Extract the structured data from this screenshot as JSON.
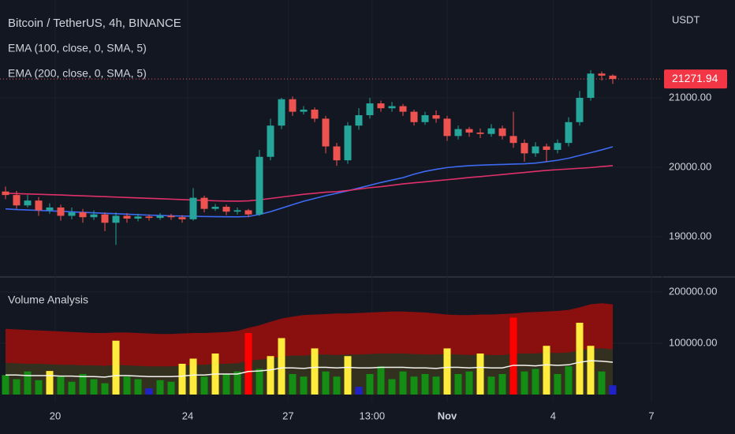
{
  "chart_data": [
    {
      "type": "candlestick",
      "title": "Bitcoin / TetherUS, 4h, BINANCE",
      "axis_unit": "USDT",
      "up_color": "#26a69a",
      "down_color": "#ef5350",
      "grid": true,
      "xlim": [
        -0.5,
        59.5
      ],
      "xticks": [
        {
          "value": 4.5,
          "label": "20"
        },
        {
          "value": 16.5,
          "label": "24"
        },
        {
          "value": 25.6,
          "label": "27"
        },
        {
          "value": 33.2,
          "label": "13:00"
        },
        {
          "value": 40,
          "label": "Nov"
        },
        {
          "value": 49.6,
          "label": "4"
        },
        {
          "value": 58.5,
          "label": "7"
        }
      ],
      "ylim": [
        18430,
        22410
      ],
      "yticks": [
        {
          "value": 19000,
          "label": "19000.00"
        },
        {
          "value": 20000,
          "label": "20000.00"
        },
        {
          "value": 21000,
          "label": "21000.00"
        }
      ],
      "last_price_label": "21271.94",
      "open": [
        19650,
        19600,
        19450,
        19520,
        19380,
        19420,
        19300,
        19350,
        19280,
        19320,
        19200,
        19300,
        19260,
        19290,
        19270,
        19300,
        19280,
        19250,
        19560,
        19400,
        19430,
        19360,
        19380,
        19320,
        20150,
        20600,
        20980,
        20800,
        20830,
        20700,
        20300,
        20100,
        20600,
        20750,
        20920,
        20850,
        20880,
        20800,
        20650,
        20750,
        20700,
        20450,
        20550,
        20500,
        20480,
        20560,
        20450,
        20350,
        20200,
        20300,
        20250,
        20350,
        20650,
        21000,
        21350,
        21320
      ],
      "high": [
        19720,
        19660,
        19600,
        19570,
        19480,
        19460,
        19420,
        19400,
        19380,
        19350,
        19350,
        19340,
        19330,
        19320,
        19340,
        19330,
        19310,
        19700,
        19590,
        19470,
        19460,
        19420,
        19400,
        20250,
        20700,
        21000,
        21020,
        20880,
        20860,
        20740,
        20350,
        20650,
        20850,
        21000,
        20960,
        20940,
        20910,
        20830,
        20800,
        20820,
        20740,
        20600,
        20580,
        20560,
        20620,
        20600,
        20800,
        20400,
        20360,
        20340,
        20400,
        20720,
        21100,
        21400,
        21380,
        21340
      ],
      "low": [
        19540,
        19400,
        19420,
        19300,
        19330,
        19230,
        19250,
        19200,
        19240,
        19080,
        18880,
        19200,
        19220,
        19230,
        19240,
        19240,
        19200,
        19230,
        19350,
        19370,
        19310,
        19320,
        19280,
        19300,
        20100,
        20550,
        20740,
        20760,
        20650,
        20200,
        20020,
        20050,
        20540,
        20700,
        20800,
        20800,
        20740,
        20600,
        20610,
        20640,
        20380,
        20400,
        20440,
        20420,
        20440,
        20400,
        20280,
        20080,
        20150,
        20080,
        20200,
        20300,
        20600,
        20960,
        21250,
        21200
      ],
      "close": [
        19600,
        19450,
        19520,
        19380,
        19420,
        19300,
        19350,
        19280,
        19320,
        19200,
        19300,
        19260,
        19290,
        19270,
        19300,
        19280,
        19250,
        19560,
        19400,
        19430,
        19360,
        19380,
        19320,
        20150,
        20600,
        20980,
        20800,
        20830,
        20700,
        20300,
        20100,
        20600,
        20750,
        20920,
        20850,
        20880,
        20800,
        20650,
        20750,
        20700,
        20450,
        20550,
        20500,
        20480,
        20560,
        20450,
        20350,
        20200,
        20300,
        20250,
        20350,
        20650,
        21000,
        21350,
        21320,
        21271.94
      ],
      "series": [
        {
          "name": "EMA (100, close, 0, SMA, 5)",
          "color": "#3d6af2",
          "values": [
            19400,
            19390,
            19385,
            19378,
            19372,
            19365,
            19358,
            19350,
            19343,
            19336,
            19330,
            19323,
            19316,
            19310,
            19305,
            19300,
            19296,
            19293,
            19290,
            19288,
            19286,
            19285,
            19290,
            19320,
            19360,
            19410,
            19460,
            19510,
            19550,
            19590,
            19625,
            19660,
            19700,
            19740,
            19780,
            19815,
            19850,
            19900,
            19940,
            19970,
            19995,
            20010,
            20023,
            20030,
            20035,
            20040,
            20045,
            20050,
            20060,
            20080,
            20100,
            20130,
            20170,
            20210,
            20250,
            20295
          ]
        },
        {
          "name": "EMA (200, close, 0, SMA, 5)",
          "color": "#e0306a",
          "values": [
            19625,
            19620,
            19615,
            19610,
            19605,
            19600,
            19594,
            19588,
            19582,
            19576,
            19570,
            19564,
            19558,
            19552,
            19546,
            19540,
            19534,
            19528,
            19522,
            19516,
            19512,
            19511,
            19515,
            19530,
            19550,
            19570,
            19590,
            19610,
            19625,
            19640,
            19648,
            19665,
            19685,
            19705,
            19720,
            19740,
            19760,
            19775,
            19790,
            19805,
            19820,
            19835,
            19852,
            19865,
            19880,
            19895,
            19910,
            19925,
            19940,
            19955,
            19965,
            19975,
            19985,
            19995,
            20010,
            20023
          ]
        }
      ]
    },
    {
      "type": "bar",
      "title": "Volume Analysis",
      "grid": true,
      "xlim": [
        -0.5,
        59.5
      ],
      "ylim": [
        0,
        227700
      ],
      "yticks": [
        {
          "value": 100000,
          "label": "100000.00"
        },
        {
          "value": 200000,
          "label": "200000.00"
        }
      ],
      "values": [
        38000,
        30000,
        45000,
        28000,
        46000,
        35000,
        25000,
        40000,
        30000,
        22000,
        105000,
        35000,
        30000,
        12000,
        28000,
        25000,
        60000,
        70000,
        35000,
        80000,
        40000,
        45000,
        120000,
        50000,
        75000,
        110000,
        40000,
        35000,
        90000,
        45000,
        35000,
        75000,
        15000,
        40000,
        55000,
        30000,
        45000,
        35000,
        40000,
        35000,
        90000,
        40000,
        45000,
        80000,
        35000,
        40000,
        150000,
        45000,
        50000,
        95000,
        40000,
        55000,
        140000,
        95000,
        45000,
        18000
      ],
      "colors": [
        "#138d13",
        "#138d13",
        "#138d13",
        "#138d13",
        "#ffeb3b",
        "#138d13",
        "#138d13",
        "#138d13",
        "#138d13",
        "#138d13",
        "#ffeb3b",
        "#138d13",
        "#138d13",
        "#1e22c8",
        "#138d13",
        "#138d13",
        "#ffeb3b",
        "#ffeb3b",
        "#138d13",
        "#ffeb3b",
        "#138d13",
        "#138d13",
        "#ff0000",
        "#138d13",
        "#ffeb3b",
        "#ffeb3b",
        "#138d13",
        "#138d13",
        "#ffeb3b",
        "#138d13",
        "#138d13",
        "#ffeb3b",
        "#1e22c8",
        "#138d13",
        "#138d13",
        "#138d13",
        "#138d13",
        "#138d13",
        "#138d13",
        "#138d13",
        "#ffeb3b",
        "#138d13",
        "#138d13",
        "#ffeb3b",
        "#138d13",
        "#138d13",
        "#ff0000",
        "#138d13",
        "#138d13",
        "#ffeb3b",
        "#138d13",
        "#138d13",
        "#ffeb3b",
        "#ffeb3b",
        "#138d13",
        "#1e22c8"
      ],
      "areas": [
        {
          "color": "#8a1010",
          "values": [
            128000,
            127000,
            126000,
            125000,
            124000,
            123000,
            122000,
            121000,
            120000,
            120000,
            121000,
            121000,
            120000,
            119000,
            118000,
            118000,
            119000,
            120000,
            120000,
            121000,
            122000,
            124000,
            130000,
            135000,
            142000,
            148000,
            152000,
            155000,
            156000,
            157000,
            158000,
            158000,
            159000,
            160000,
            161000,
            162000,
            162000,
            161000,
            160000,
            158000,
            156000,
            155000,
            155000,
            156000,
            156000,
            157000,
            158000,
            160000,
            161000,
            162000,
            163000,
            165000,
            170000,
            176000,
            178000,
            176000
          ]
        },
        {
          "color": "#33301f",
          "values": [
            62000,
            61000,
            60000,
            60000,
            59000,
            58000,
            58000,
            57000,
            57000,
            56000,
            58000,
            57000,
            56000,
            55000,
            55000,
            55000,
            56000,
            58000,
            58000,
            60000,
            60000,
            61000,
            66000,
            68000,
            70000,
            74000,
            76000,
            76000,
            78000,
            78000,
            77000,
            78000,
            78000,
            79000,
            80000,
            80000,
            80000,
            79000,
            78000,
            78000,
            79000,
            78000,
            77000,
            78000,
            77000,
            77000,
            80000,
            80000,
            80000,
            82000,
            81000,
            82000,
            86000,
            90000,
            90000,
            88000
          ]
        }
      ],
      "line": {
        "color": "#f5f5f0",
        "values": [
          38000,
          38000,
          37000,
          37000,
          37000,
          36000,
          36000,
          35000,
          35000,
          34000,
          37000,
          37000,
          36000,
          35000,
          35000,
          35000,
          36000,
          38000,
          38000,
          40000,
          40000,
          40000,
          45000,
          46000,
          48000,
          52000,
          52000,
          51000,
          53000,
          53000,
          52000,
          53000,
          52000,
          52000,
          53000,
          53000,
          53000,
          52000,
          52000,
          51000,
          53000,
          53000,
          52000,
          53000,
          52000,
          52000,
          57000,
          57000,
          56000,
          58000,
          57000,
          58000,
          63000,
          66000,
          65000,
          63000
        ]
      }
    }
  ]
}
